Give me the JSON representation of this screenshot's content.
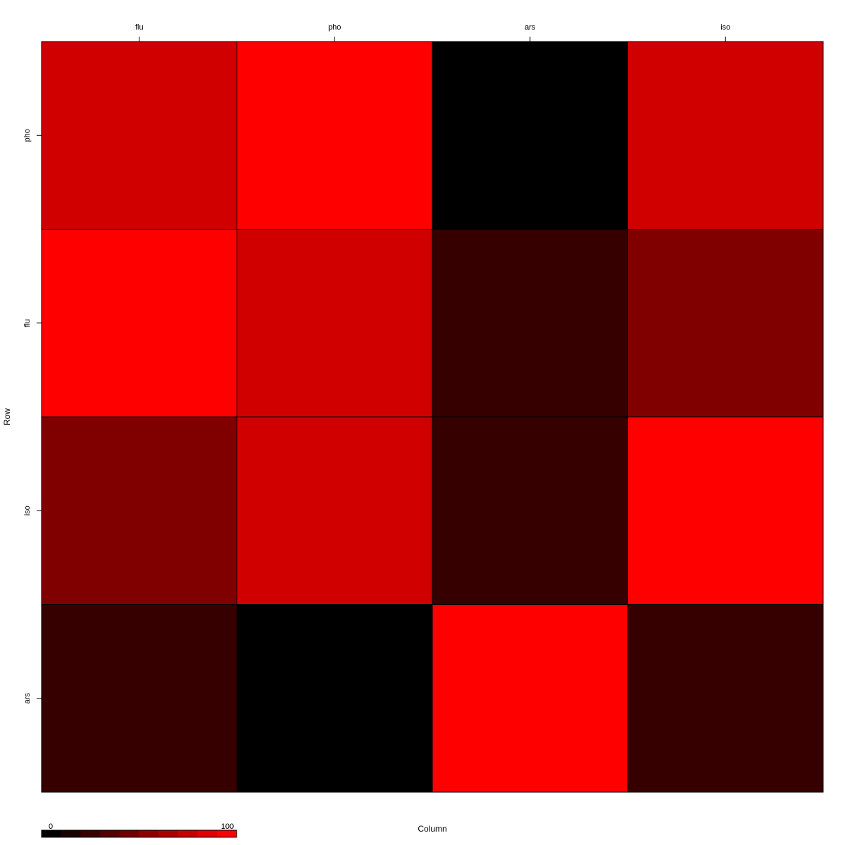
{
  "chart_data": {
    "type": "heatmap",
    "title": "",
    "xlabel": "Column",
    "ylabel": "Row",
    "x_categories": [
      "flu",
      "pho",
      "ars",
      "iso"
    ],
    "y_categories": [
      "pho",
      "flu",
      "iso",
      "ars"
    ],
    "values": [
      [
        82,
        100,
        0,
        82
      ],
      [
        100,
        82,
        21,
        50
      ],
      [
        50,
        82,
        21,
        100
      ],
      [
        21,
        0,
        100,
        21
      ]
    ],
    "color_scale": {
      "min": 0,
      "max": 100,
      "low_color": "#000000",
      "high_color": "#ff0000",
      "min_label": "0",
      "max_label": "100",
      "legend_steps": 10
    },
    "grid": false,
    "legend_placement": "bottom-left"
  }
}
